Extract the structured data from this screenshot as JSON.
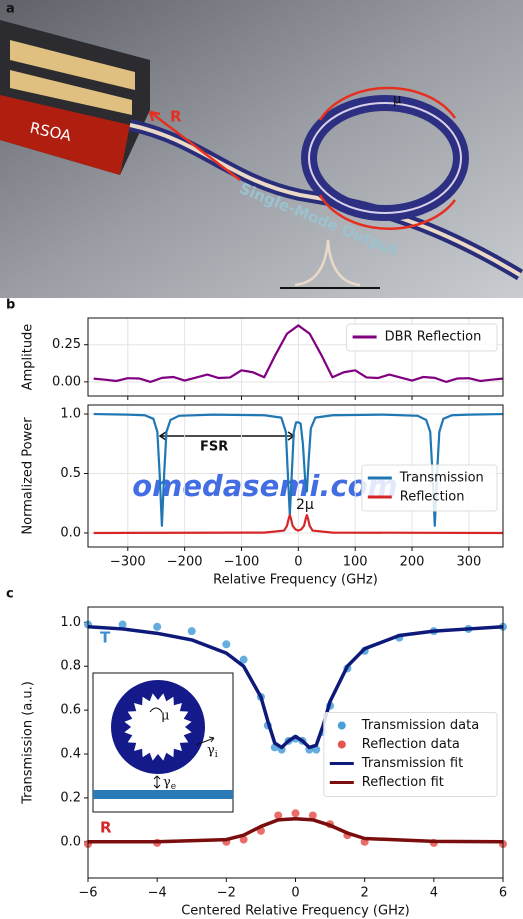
{
  "panel_a": {
    "label": "a",
    "rsoa": "RSOA",
    "reflection": "R",
    "mu": "μ",
    "output": "Single-Mode Output"
  },
  "watermark": "omedasemi.com",
  "chart_data": [
    {
      "type": "line",
      "panel_label": "b",
      "ylabel": "Amplitude",
      "ylim": [
        -0.095,
        0.43
      ],
      "yticks": [
        {
          "value": 0,
          "label": "0.00"
        },
        {
          "value": 0.25,
          "label": "0.25"
        }
      ],
      "grid": true,
      "legend": "upper right",
      "series": [
        {
          "name": "DBR Reflection",
          "color": "#800080",
          "style": "line",
          "x": [
            -360,
            -340,
            -320,
            -300,
            -280,
            -260,
            -240,
            -220,
            -200,
            -180,
            -160,
            -140,
            -120,
            -100,
            -80,
            -60,
            -40,
            -20,
            0,
            20,
            40,
            60,
            80,
            100,
            120,
            140,
            160,
            180,
            200,
            220,
            240,
            260,
            280,
            300,
            320,
            340,
            360
          ],
          "values": [
            0.022,
            0.015,
            0.006,
            0.025,
            0.023,
            0.0,
            0.027,
            0.033,
            0.009,
            0.029,
            0.049,
            0.026,
            0.03,
            0.078,
            0.065,
            0.031,
            0.184,
            0.324,
            0.38,
            0.324,
            0.184,
            0.031,
            0.065,
            0.078,
            0.03,
            0.026,
            0.049,
            0.029,
            0.009,
            0.033,
            0.027,
            0.0,
            0.023,
            0.025,
            0.006,
            0.015,
            0.022
          ]
        }
      ]
    },
    {
      "type": "line",
      "ylabel": "Normalized Power",
      "xlabel": "Relative Frequency (GHz)",
      "xlim": [
        -370,
        360
      ],
      "xticks": [
        {
          "value": -300,
          "label": "−300"
        },
        {
          "value": -200,
          "label": "−200"
        },
        {
          "value": -100,
          "label": "−100"
        },
        0,
        100,
        200,
        300
      ],
      "ylim": [
        -0.118,
        1.076
      ],
      "yticks": [
        {
          "value": 0,
          "label": "0.0"
        },
        {
          "value": 0.5,
          "label": "0.5"
        },
        {
          "value": 1,
          "label": "1.0"
        }
      ],
      "grid": true,
      "legend": "center right",
      "annotations": [
        "FSR",
        "2μ"
      ],
      "series": [
        {
          "name": "Transmission",
          "color": "#1f77b4",
          "style": "line",
          "x": [
            -360,
            -300,
            -270,
            -255,
            -248,
            -244,
            -240,
            -236,
            -232,
            -225,
            -210,
            -150,
            -60,
            -30,
            -22,
            -18,
            -15,
            -12,
            -8,
            -4,
            0,
            4,
            8,
            12,
            15,
            18,
            22,
            30,
            60,
            150,
            210,
            225,
            232,
            236,
            240,
            244,
            248,
            255,
            270,
            300,
            360
          ],
          "values": [
            1.0,
            0.995,
            0.99,
            0.96,
            0.85,
            0.5,
            0.06,
            0.5,
            0.85,
            0.95,
            0.985,
            0.995,
            0.99,
            0.97,
            0.85,
            0.45,
            0.15,
            0.45,
            0.85,
            0.93,
            0.93,
            0.92,
            0.75,
            0.45,
            0.35,
            0.6,
            0.88,
            0.97,
            0.99,
            0.995,
            0.985,
            0.95,
            0.85,
            0.5,
            0.06,
            0.5,
            0.85,
            0.96,
            0.99,
            0.995,
            1.0
          ]
        },
        {
          "name": "Reflection",
          "color": "#d62728",
          "style": "line",
          "x": [
            -360,
            -60,
            -25,
            -20,
            -17,
            -15,
            -13,
            -10,
            -5,
            0,
            5,
            10,
            13,
            15,
            17,
            20,
            25,
            60,
            360
          ],
          "values": [
            0,
            0.003,
            0.02,
            0.06,
            0.12,
            0.15,
            0.12,
            0.06,
            0.03,
            0.02,
            0.03,
            0.06,
            0.12,
            0.15,
            0.12,
            0.06,
            0.02,
            0.003,
            0
          ]
        }
      ]
    },
    {
      "type": "line",
      "panel_label": "c",
      "ylabel": "Transmission (a.u.)",
      "xlabel": "Centered Relative Frequency (GHz)",
      "xlim": [
        -6,
        6
      ],
      "xticks": [
        {
          "value": -6,
          "label": "−6"
        },
        {
          "value": -4,
          "label": "−4"
        },
        {
          "value": -2,
          "label": "−2"
        },
        0,
        2,
        4,
        6
      ],
      "ylim": [
        -0.165,
        1.07
      ],
      "yticks": [
        {
          "value": 0,
          "label": "0.0"
        },
        {
          "value": 0.2,
          "label": "0.2"
        },
        {
          "value": 0.4,
          "label": "0.4"
        },
        {
          "value": 0.6,
          "label": "0.6"
        },
        {
          "value": 0.8,
          "label": "0.8"
        },
        {
          "value": 1,
          "label": "1.0"
        }
      ],
      "grid": false,
      "legend": "center right",
      "annotations": [
        "T",
        "R"
      ],
      "inset": {
        "mu": "μ",
        "gamma_i": [
          "γ",
          "i"
        ],
        "gamma_e": [
          "γ",
          "e"
        ]
      },
      "series": [
        {
          "name": "Transmission data",
          "color": "#4a9fd8",
          "style": "scatter",
          "x": [
            -6,
            -5,
            -4,
            -3,
            -2,
            -1.5,
            -1,
            -0.8,
            -0.6,
            -0.4,
            -0.2,
            0,
            0.2,
            0.4,
            0.6,
            0.8,
            1,
            1.5,
            2,
            3,
            4,
            5,
            6
          ],
          "values": [
            0.99,
            0.99,
            0.98,
            0.96,
            0.9,
            0.83,
            0.66,
            0.53,
            0.43,
            0.42,
            0.46,
            0.47,
            0.46,
            0.42,
            0.42,
            0.5,
            0.62,
            0.79,
            0.87,
            0.93,
            0.96,
            0.97,
            0.98
          ]
        },
        {
          "name": "Reflection data",
          "color": "#e8534f",
          "style": "scatter",
          "x": [
            -6,
            -4,
            -2,
            -1.5,
            -1,
            -0.5,
            0,
            0.5,
            1,
            1.5,
            2,
            4,
            6
          ],
          "values": [
            -0.01,
            -0.005,
            0,
            0.01,
            0.05,
            0.12,
            0.13,
            0.12,
            0.08,
            0.03,
            0,
            -0.005,
            -0.01
          ]
        },
        {
          "name": "Transmission fit",
          "color": "#0d1a7a",
          "style": "line",
          "x": [
            -6,
            -5,
            -4,
            -3,
            -2,
            -1.5,
            -1,
            -0.8,
            -0.6,
            -0.4,
            -0.2,
            0,
            0.2,
            0.4,
            0.6,
            0.8,
            1,
            1.5,
            2,
            3,
            4,
            5,
            6
          ],
          "values": [
            0.98,
            0.97,
            0.95,
            0.92,
            0.86,
            0.8,
            0.66,
            0.55,
            0.45,
            0.43,
            0.46,
            0.48,
            0.46,
            0.43,
            0.44,
            0.53,
            0.64,
            0.8,
            0.88,
            0.94,
            0.96,
            0.97,
            0.98
          ]
        },
        {
          "name": "Reflection fit",
          "color": "#7a0d0d",
          "style": "line",
          "x": [
            -6,
            -4,
            -2,
            -1.5,
            -1,
            -0.5,
            0,
            0.5,
            1,
            1.5,
            2,
            4,
            6
          ],
          "values": [
            0,
            0,
            0.01,
            0.03,
            0.07,
            0.1,
            0.105,
            0.1,
            0.075,
            0.04,
            0.015,
            0.002,
            0
          ]
        }
      ]
    }
  ]
}
